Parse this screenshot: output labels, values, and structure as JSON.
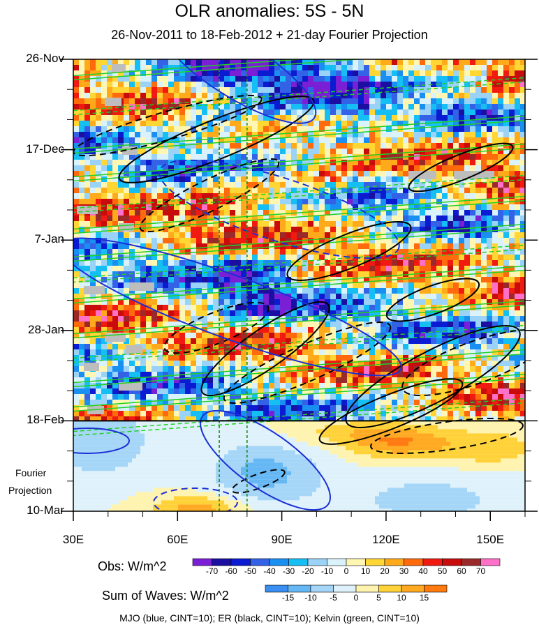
{
  "chart_data": {
    "type": "heatmap",
    "title": "OLR anomalies: 5S - 5N",
    "subtitle": "26-Nov-2011 to 18-Feb-2012 + 21-day Fourier Projection",
    "x_axis": {
      "ticks": [
        "30E",
        "60E",
        "90E",
        "120E",
        "150E"
      ],
      "values": [
        30,
        60,
        90,
        120,
        150
      ],
      "range": [
        30,
        160
      ]
    },
    "y_axis": {
      "ticks": [
        "26-Nov",
        "17-Dec",
        "7-Jan",
        "28-Jan",
        "18-Feb",
        "10-Mar"
      ],
      "direction": "time increases downward"
    },
    "projection_label": [
      "Fourier",
      "Projection"
    ],
    "projection_start": "18-Feb",
    "reference_lines_lon": [
      72,
      80
    ],
    "colorbar_obs": {
      "title": "Obs: W/m^2",
      "levels": [
        -70,
        -60,
        -50,
        -40,
        -30,
        -20,
        -10,
        0,
        10,
        20,
        30,
        40,
        50,
        60,
        70
      ],
      "level_labels": [
        "-70",
        "-60",
        "-50",
        "-40",
        "-30",
        "-20",
        "-10",
        "0",
        "10",
        "20",
        "30",
        "40",
        "50",
        "60",
        "70"
      ],
      "colors": [
        "#7a1fd6",
        "#1a0fa0",
        "#0b1bd1",
        "#3462e6",
        "#1a8ff2",
        "#15bff3",
        "#9ad3f7",
        "#daf2fb",
        "#fff6b3",
        "#ffd633",
        "#ffaa1a",
        "#ff6a0d",
        "#f01a10",
        "#c80c0c",
        "#9a2a2a",
        "#ff70c8"
      ]
    },
    "colorbar_waves": {
      "title": "Sum of Waves: W/m^2",
      "levels": [
        -15,
        -10,
        -5,
        0,
        5,
        10,
        15
      ],
      "level_labels": [
        "-15",
        "-10",
        "-5",
        "0",
        "5",
        "10",
        "15"
      ],
      "colors": [
        "#3a8ff0",
        "#66b8f5",
        "#a6d6f7",
        "#dff2fb",
        "#fff3b0",
        "#ffd23a",
        "#ffaa22",
        "#ff7a10"
      ]
    },
    "legend_note": "MJO (blue, CINT=10); ER (black, CINT=10); Kelvin (green, CINT=10)",
    "contour_series": [
      {
        "name": "MJO",
        "color": "#1a2fd6"
      },
      {
        "name": "ER",
        "color": "#000000"
      },
      {
        "name": "Kelvin",
        "color": "#22d022"
      }
    ]
  }
}
